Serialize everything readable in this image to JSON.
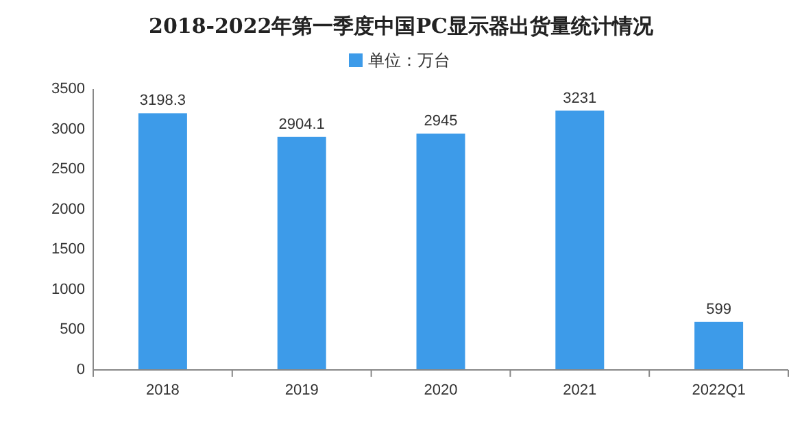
{
  "chart_data": {
    "type": "bar",
    "title": "2018-2022年第一季度中国PC显示器出货量统计情况",
    "categories": [
      "2018",
      "2019",
      "2020",
      "2021",
      "2022Q1"
    ],
    "series": [
      {
        "name": "单位：万台",
        "color": "#3d9be9",
        "values": [
          3198.3,
          2904.1,
          2945,
          3231,
          599
        ]
      }
    ],
    "ylim": [
      0,
      3500
    ],
    "yticks": [
      0,
      500,
      1000,
      1500,
      2000,
      2500,
      3000,
      3500
    ],
    "data_labels": true,
    "legend": "top"
  }
}
